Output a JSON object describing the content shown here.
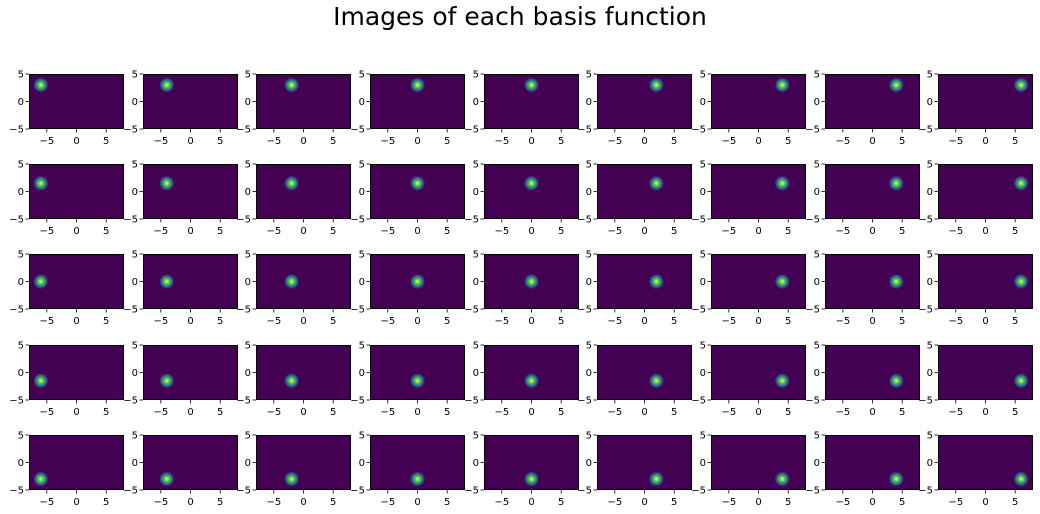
{
  "chart_data": {
    "type": "heatmap",
    "title": "Images of each basis function",
    "rows": 5,
    "cols": 9,
    "xlim": [
      -8,
      8
    ],
    "ylim": [
      -5,
      5
    ],
    "xticks": [
      -5,
      0,
      5
    ],
    "yticks": [
      -5,
      0,
      5
    ],
    "xtick_labels": [
      "−5",
      "0",
      "5"
    ],
    "ytick_labels": [
      "−5",
      "0",
      "5"
    ],
    "centers_x": [
      -6.0,
      -4.0,
      -2.0,
      0.0,
      0.0,
      2.0,
      4.0,
      4.0,
      6.0
    ],
    "centers_y": [
      3.0,
      1.5,
      0.0,
      -1.5,
      -3.0
    ],
    "sigma": 0.5,
    "colormap": "viridis",
    "background_color": "#440154",
    "peak_color": "#fde725",
    "grid": false
  }
}
